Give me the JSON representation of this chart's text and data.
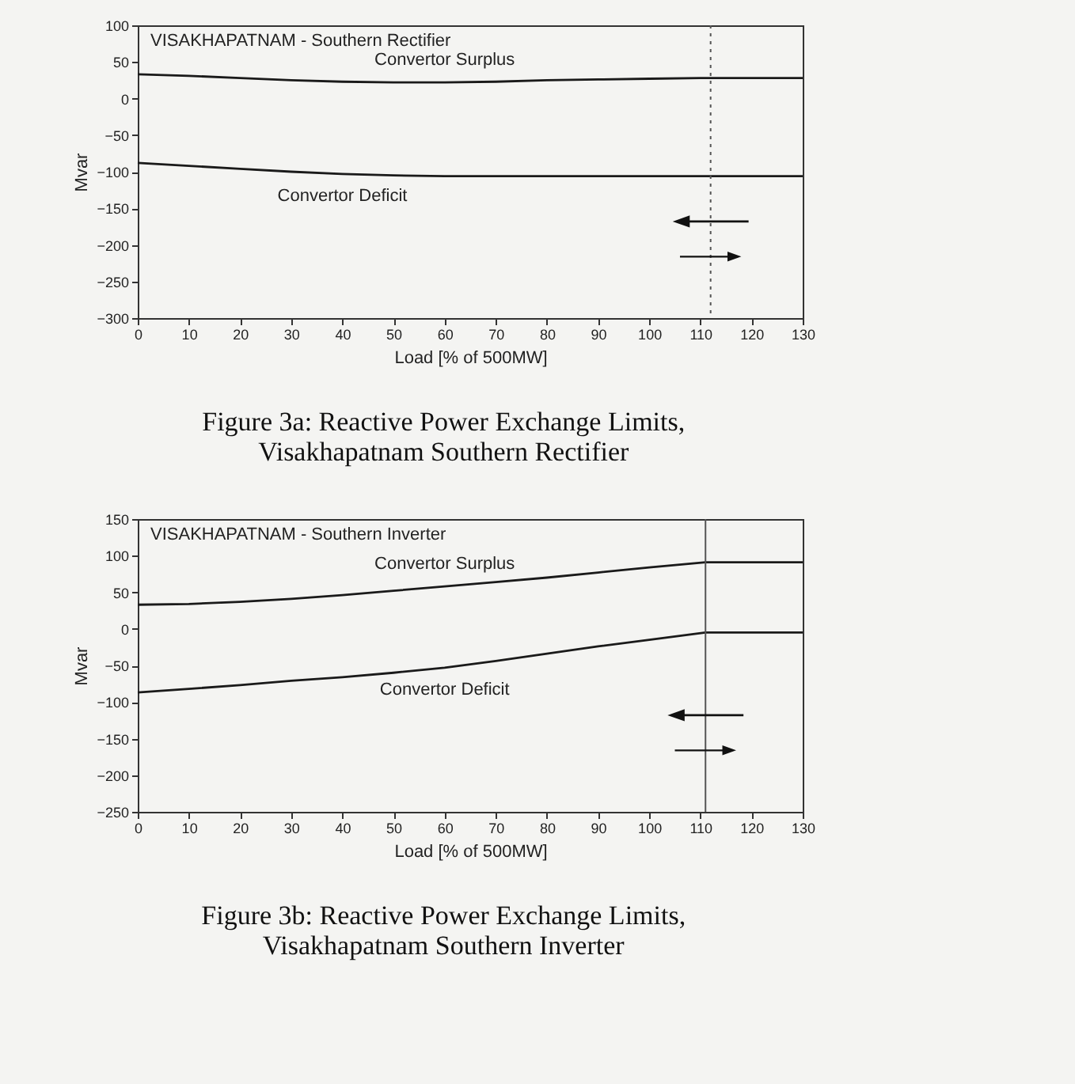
{
  "chart_data": [
    {
      "type": "line",
      "title": "Figure 3a: Reactive Power Exchange Limits, Visakhapatnam Southern Rectifier",
      "subtitle": "VISAKHAPATNAM - Southern Rectifier",
      "xlabel": "Load [% of 500MW]",
      "ylabel": "Mvar",
      "xlim": [
        0,
        130
      ],
      "xticks": [
        0,
        10,
        20,
        30,
        40,
        50,
        60,
        70,
        80,
        90,
        100,
        110,
        120,
        130
      ],
      "ylim": [
        -300,
        100
      ],
      "yticks": [
        -300,
        -250,
        -200,
        -150,
        -100,
        -50,
        0,
        50,
        100
      ],
      "series": [
        {
          "name": "Convertor Surplus",
          "color": "#1a1a1a",
          "x": [
            0,
            10,
            20,
            30,
            40,
            50,
            60,
            70,
            80,
            90,
            100,
            110,
            130
          ],
          "values": [
            33,
            31,
            28,
            25,
            23,
            22,
            22,
            23,
            25,
            26,
            27,
            28,
            28
          ]
        },
        {
          "name": "Convertor Deficit",
          "color": "#1a1a1a",
          "x": [
            0,
            10,
            20,
            30,
            40,
            50,
            60,
            70,
            130
          ],
          "values": [
            -88,
            -92,
            -96,
            -100,
            -103,
            -105,
            -106,
            -106,
            -106
          ]
        }
      ],
      "ref_lines": [
        {
          "axis": "x",
          "value": 112,
          "line_style": "dotted",
          "color": "#555555"
        }
      ]
    },
    {
      "type": "line",
      "title": "Figure 3b: Reactive Power Exchange Limits, Visakhapatnam Southern Inverter",
      "subtitle": "VISAKHAPATNAM - Southern Inverter",
      "xlabel": "Load [% of 500MW]",
      "ylabel": "Mvar",
      "xlim": [
        0,
        130
      ],
      "xticks": [
        0,
        10,
        20,
        30,
        40,
        50,
        60,
        70,
        80,
        90,
        100,
        110,
        120,
        130
      ],
      "ylim": [
        -250,
        150
      ],
      "yticks": [
        -250,
        -200,
        -150,
        -100,
        -50,
        0,
        50,
        100,
        150
      ],
      "series": [
        {
          "name": "Convertor Surplus",
          "color": "#1a1a1a",
          "x": [
            0,
            10,
            20,
            30,
            40,
            50,
            60,
            70,
            80,
            90,
            100,
            111,
            130
          ],
          "values": [
            33,
            34,
            37,
            41,
            46,
            52,
            58,
            64,
            70,
            77,
            84,
            91,
            91
          ]
        },
        {
          "name": "Convertor Deficit",
          "color": "#1a1a1a",
          "x": [
            0,
            10,
            20,
            30,
            40,
            50,
            60,
            70,
            80,
            90,
            100,
            111,
            130
          ],
          "values": [
            -87,
            -82,
            -77,
            -71,
            -66,
            -60,
            -53,
            -44,
            -34,
            -24,
            -15,
            -5,
            -5
          ]
        }
      ],
      "ref_lines": [
        {
          "axis": "x",
          "value": 111,
          "line_style": "solid",
          "color": "#555555"
        }
      ]
    }
  ]
}
